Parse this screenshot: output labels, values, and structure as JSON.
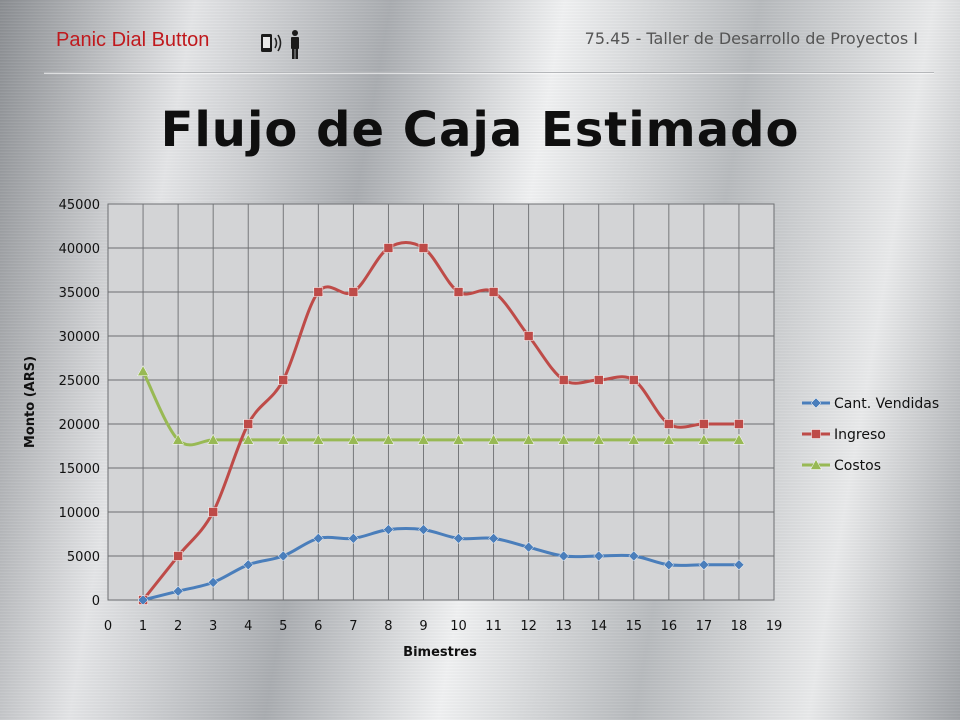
{
  "header": {
    "brand": "Panic Dial Button",
    "course": "75.45 - Taller de Desarrollo de Proyectos I",
    "icon": "phone-person-icon"
  },
  "chart_data": {
    "type": "line",
    "title": "Flujo de Caja Estimado",
    "xlabel": "Bimestres",
    "ylabel": "Monto (ARS)",
    "x": [
      1,
      2,
      3,
      4,
      5,
      6,
      7,
      8,
      9,
      10,
      11,
      12,
      13,
      14,
      15,
      16,
      17,
      18
    ],
    "xlim": [
      0,
      19
    ],
    "ylim": [
      0,
      45000
    ],
    "xticks": [
      0,
      1,
      2,
      3,
      4,
      5,
      6,
      7,
      8,
      9,
      10,
      11,
      12,
      13,
      14,
      15,
      16,
      17,
      18,
      19
    ],
    "yticks": [
      0,
      5000,
      10000,
      15000,
      20000,
      25000,
      30000,
      35000,
      40000,
      45000
    ],
    "grid": true,
    "smooth": true,
    "legend_position": "right",
    "series": [
      {
        "name": "Cant. Vendidas",
        "color": "#4a7ebb",
        "marker": "diamond",
        "values": [
          0,
          1000,
          2000,
          4000,
          5000,
          7000,
          7000,
          8000,
          8000,
          7000,
          7000,
          6000,
          5000,
          5000,
          5000,
          4000,
          4000,
          4000
        ]
      },
      {
        "name": "Ingreso",
        "color": "#be4b48",
        "marker": "square",
        "values": [
          0,
          5000,
          10000,
          20000,
          25000,
          35000,
          35000,
          40000,
          40000,
          35000,
          35000,
          30000,
          25000,
          25000,
          25000,
          20000,
          20000,
          20000
        ]
      },
      {
        "name": "Costos",
        "color": "#98b954",
        "marker": "triangle",
        "values": [
          26000,
          18200,
          18200,
          18200,
          18200,
          18200,
          18200,
          18200,
          18200,
          18200,
          18200,
          18200,
          18200,
          18200,
          18200,
          18200,
          18200,
          18200
        ]
      }
    ]
  }
}
